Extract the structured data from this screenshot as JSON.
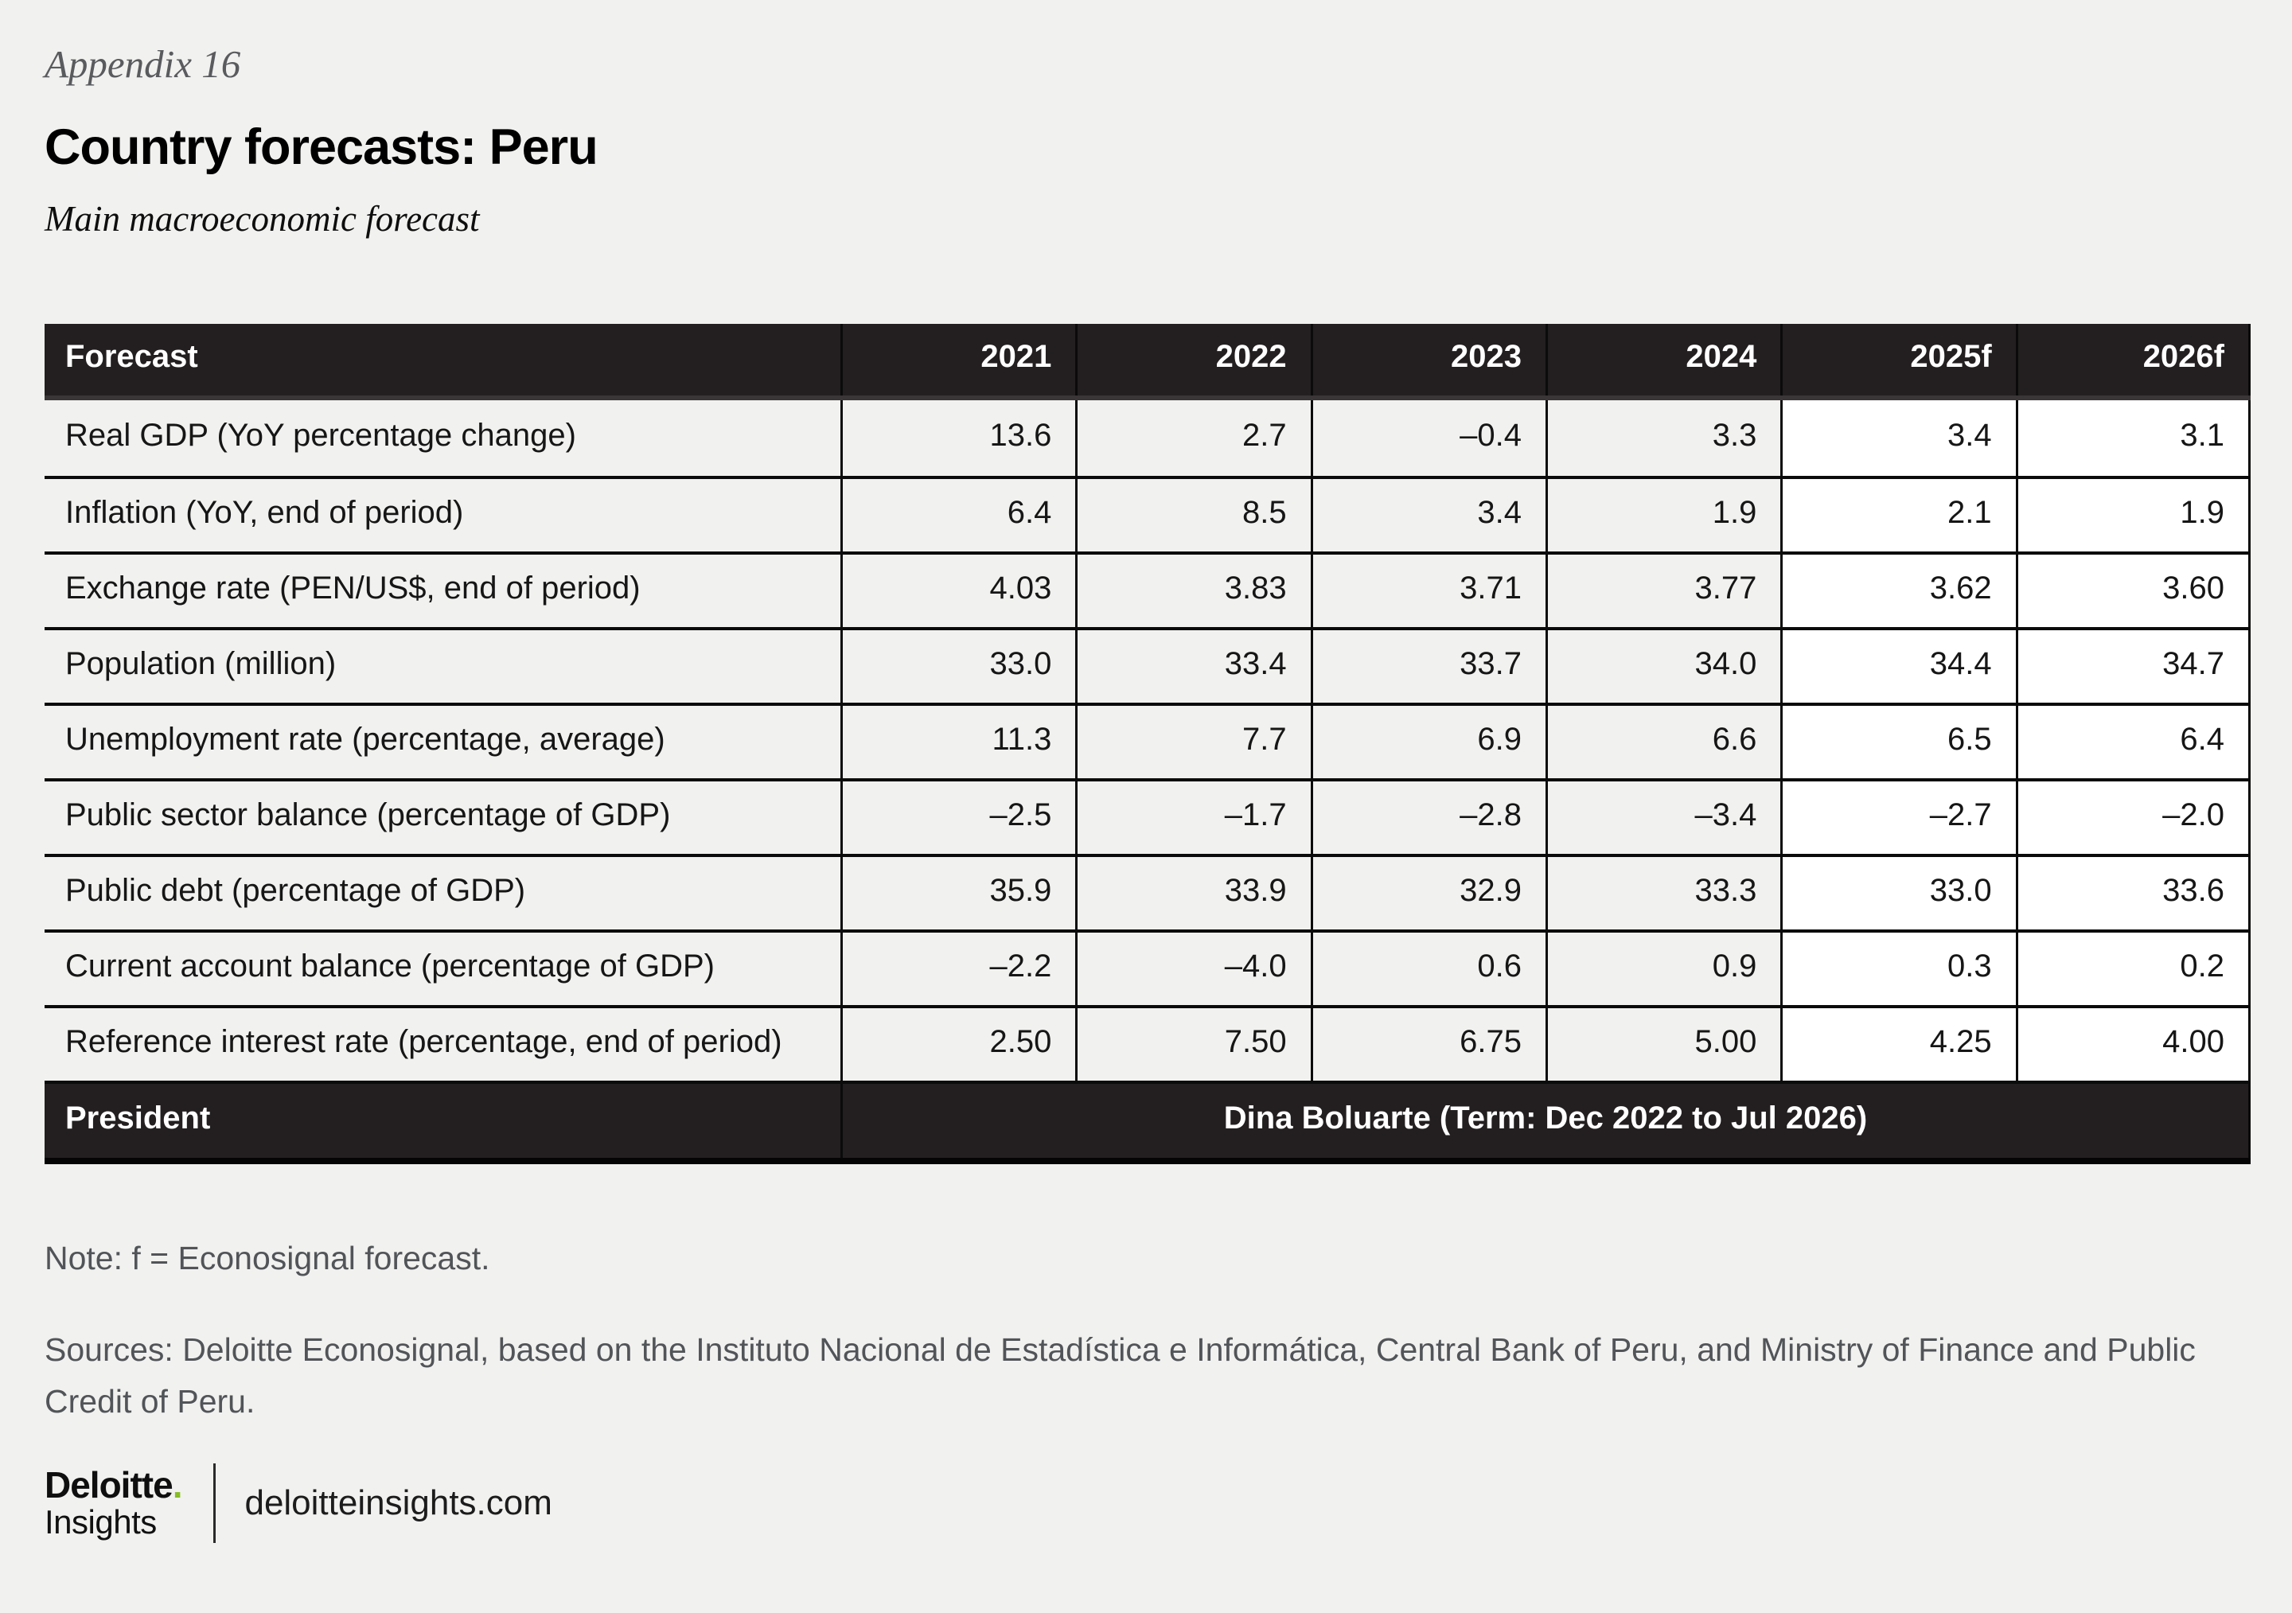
{
  "header": {
    "appendix": "Appendix 16",
    "title": "Country forecasts: Peru",
    "subtitle": "Main macroeconomic forecast"
  },
  "table": {
    "columns": [
      "Forecast",
      "2021",
      "2022",
      "2023",
      "2024",
      "2025f",
      "2026f"
    ],
    "rows": [
      {
        "label": "Real GDP (YoY percentage change)",
        "values": [
          "13.6",
          "2.7",
          "–0.4",
          "3.3",
          "3.4",
          "3.1"
        ]
      },
      {
        "label": "Inflation (YoY, end of period)",
        "values": [
          "6.4",
          "8.5",
          "3.4",
          "1.9",
          "2.1",
          "1.9"
        ]
      },
      {
        "label": "Exchange rate (PEN/US$, end of period)",
        "values": [
          "4.03",
          "3.83",
          "3.71",
          "3.77",
          "3.62",
          "3.60"
        ]
      },
      {
        "label": "Population (million)",
        "values": [
          "33.0",
          "33.4",
          "33.7",
          "34.0",
          "34.4",
          "34.7"
        ]
      },
      {
        "label": "Unemployment rate (percentage, average)",
        "values": [
          "11.3",
          "7.7",
          "6.9",
          "6.6",
          "6.5",
          "6.4"
        ]
      },
      {
        "label": "Public sector balance (percentage of GDP)",
        "values": [
          "–2.5",
          "–1.7",
          "–2.8",
          "–3.4",
          "–2.7",
          "–2.0"
        ]
      },
      {
        "label": "Public debt (percentage of GDP)",
        "values": [
          "35.9",
          "33.9",
          "32.9",
          "33.3",
          "33.0",
          "33.6"
        ]
      },
      {
        "label": "Current account balance (percentage of GDP)",
        "values": [
          "–2.2",
          "–4.0",
          "0.6",
          "0.9",
          "0.3",
          "0.2"
        ]
      },
      {
        "label": "Reference interest rate (percentage, end of period)",
        "values": [
          "2.50",
          "7.50",
          "6.75",
          "5.00",
          "4.25",
          "4.00"
        ]
      }
    ],
    "president": {
      "label": "President",
      "value": "Dina Boluarte (Term: Dec 2022 to Jul 2026)"
    }
  },
  "notes": {
    "note": "Note: f = Econosignal forecast.",
    "sources": "Sources: Deloitte Econosignal, based on the Instituto Nacional de Estadística e Informática, Central Bank of Peru, and Ministry of Finance and Public Credit of Peru."
  },
  "brand": {
    "name": "Deloitte",
    "dot": ".",
    "sub": "Insights",
    "site": "deloitteinsights.com"
  },
  "colors": {
    "page_bg": "#f1f1ef",
    "header_bg": "#231f20",
    "grid": "#0b0b0b",
    "forecast_col_bg": "#ffffff",
    "accent_green": "#86bc25",
    "muted_text": "#515458"
  }
}
